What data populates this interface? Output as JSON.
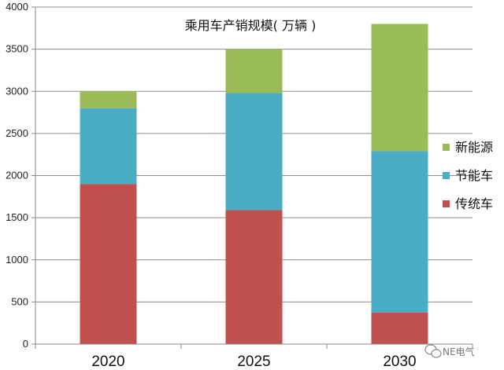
{
  "chart_data": {
    "type": "bar",
    "stacked": true,
    "title": "乘用车产销规模( 万辆 )",
    "categories": [
      "2020",
      "2025",
      "2030"
    ],
    "series": [
      {
        "name": "传统车",
        "values": [
          1900,
          1590,
          375
        ],
        "color": "#c0504d"
      },
      {
        "name": "节能车",
        "values": [
          900,
          1390,
          1915
        ],
        "color": "#4bacc6"
      },
      {
        "name": "新能源",
        "values": [
          200,
          520,
          1510
        ],
        "color": "#9bbb59"
      }
    ],
    "ylim": [
      0,
      4000
    ],
    "yticks": [
      0,
      500,
      1000,
      1500,
      2000,
      2500,
      3000,
      3500,
      4000
    ],
    "grid": true,
    "legend_position": "right",
    "xlabel": "",
    "ylabel": ""
  },
  "watermark": {
    "text": "NE电气"
  }
}
